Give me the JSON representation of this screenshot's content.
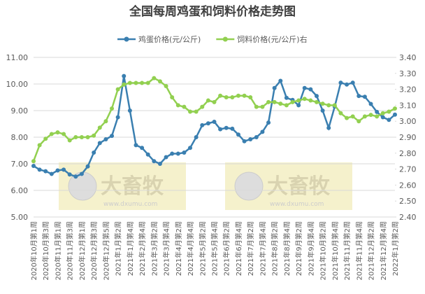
{
  "chart_data": {
    "type": "line",
    "title": "全国每周鸡蛋和饲料价格走势图",
    "categories": [
      "2020年10月第1周",
      null,
      "2020年10月第3周",
      null,
      "2020年11月第1周",
      null,
      "2020年11月第3周",
      null,
      "2020年12月第1周",
      null,
      "2020年12月第3周",
      null,
      "2020年12月第5周",
      null,
      "2021年1月第2周",
      null,
      "2021年1月第4周",
      null,
      "2021年2月第4周",
      null,
      "2021年3月第2周",
      null,
      "2021年3月第4周",
      null,
      "2021年4月第2周",
      null,
      "2021年4月第4周",
      null,
      "2021年5月第2周",
      null,
      "2021年5月第4周",
      null,
      "2021年6月第2周",
      null,
      "2021年6月第4周",
      null,
      "2021年7月第2周",
      null,
      "2021年7月第4周",
      null,
      "2021年8月第2周",
      null,
      "2021年8月第4周",
      null,
      "2021年9月第2周",
      null,
      "2021年9月第4周",
      null,
      "2021年10月第2周",
      null,
      "2021年10月第4周",
      null,
      "2021年11月第2周",
      null,
      "2021年11月第4周",
      null,
      "2021年12月第2周",
      null,
      "2021年12月第4周",
      null,
      "2022年1月第2周"
    ],
    "series": [
      {
        "name": "鸡蛋价格(元/公斤)",
        "color": "#3a7fb0",
        "values": [
          6.92,
          6.78,
          6.72,
          6.62,
          6.75,
          6.78,
          6.6,
          6.52,
          6.62,
          6.9,
          7.42,
          7.78,
          7.92,
          8.05,
          8.75,
          10.3,
          9.0,
          7.7,
          7.6,
          7.35,
          7.1,
          7.0,
          7.25,
          7.38,
          7.38,
          7.42,
          7.6,
          8.0,
          8.45,
          8.52,
          8.58,
          8.3,
          8.35,
          8.32,
          8.1,
          7.85,
          7.92,
          8.0,
          8.2,
          8.55,
          9.85,
          10.12,
          9.48,
          9.4,
          9.2,
          9.85,
          9.8,
          9.55,
          9.0,
          8.35,
          9.15,
          10.05,
          9.98,
          10.05,
          9.55,
          9.52,
          9.25,
          8.95,
          8.75,
          8.65,
          8.85
        ]
      },
      {
        "name": "饲料价格(元/公斤)右",
        "color": "#92d050",
        "axis": "y2",
        "values": [
          2.75,
          2.85,
          2.89,
          2.92,
          2.93,
          2.92,
          2.88,
          2.9,
          2.9,
          2.9,
          2.91,
          2.96,
          3.0,
          3.08,
          3.2,
          3.23,
          3.24,
          3.24,
          3.24,
          3.24,
          3.27,
          3.25,
          3.22,
          3.15,
          3.1,
          3.09,
          3.06,
          3.06,
          3.09,
          3.13,
          3.12,
          3.16,
          3.15,
          3.15,
          3.16,
          3.16,
          3.15,
          3.09,
          3.09,
          3.12,
          3.12,
          3.11,
          3.1,
          3.12,
          3.13,
          3.14,
          3.13,
          3.12,
          3.11,
          3.1,
          3.1,
          3.05,
          3.02,
          3.03,
          3.0,
          3.03,
          3.04,
          3.03,
          3.05,
          3.06,
          3.08
        ]
      }
    ],
    "ylim": [
      5,
      11
    ],
    "yticks": [
      {
        "value": 5,
        "label": "5.00"
      },
      {
        "value": 6,
        "label": "6.00"
      },
      {
        "value": 7,
        "label": "7.00"
      },
      {
        "value": 8,
        "label": "8.00"
      },
      {
        "value": 9,
        "label": "9.00"
      },
      {
        "value": 10,
        "label": "10.00"
      },
      {
        "value": 11,
        "label": "11.00"
      }
    ],
    "y2lim": [
      2.4,
      3.4
    ],
    "y2ticks": [
      {
        "value": 2.4,
        "label": "2.40"
      },
      {
        "value": 2.5,
        "label": "2.50"
      },
      {
        "value": 2.6,
        "label": "2.60"
      },
      {
        "value": 2.7,
        "label": "2.70"
      },
      {
        "value": 2.8,
        "label": "2.80"
      },
      {
        "value": 2.9,
        "label": "2.90"
      },
      {
        "value": 3,
        "label": "3.00"
      },
      {
        "value": 3.1,
        "label": "3.10"
      },
      {
        "value": 3.2,
        "label": "3.20"
      },
      {
        "value": 3.3,
        "label": "3.30"
      },
      {
        "value": 3.4,
        "label": "3.40"
      }
    ],
    "grid": true,
    "legend": "top",
    "watermarks": [
      {
        "name": "大畜牧",
        "url": "www.dxumu.com"
      },
      {
        "name": "大畜牧",
        "url": "www.dxumu.com"
      }
    ]
  }
}
